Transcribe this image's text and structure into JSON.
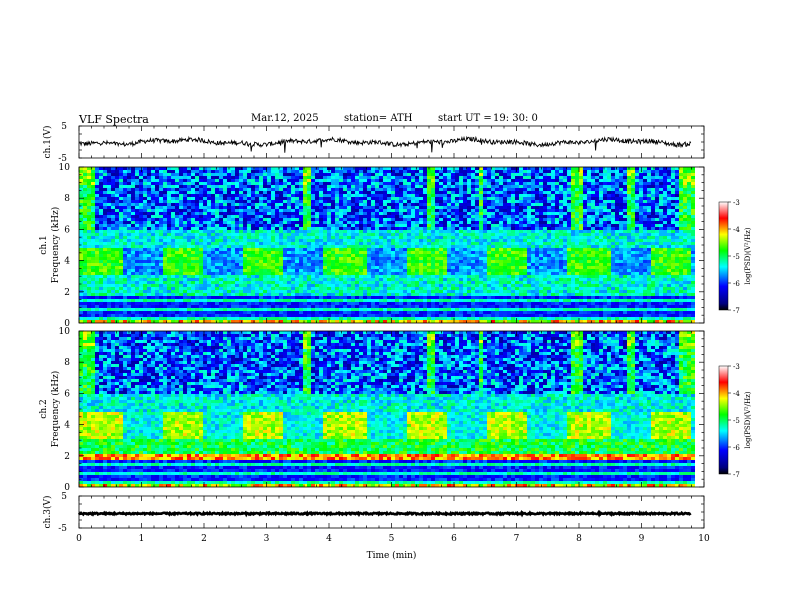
{
  "header": {
    "title": "VLF  Spectra",
    "date": "Mar.12, 2025",
    "station": "station= ATH",
    "start_ut_label": "start  UT  =",
    "start_ut": "19: 30: 0"
  },
  "colors": {
    "background": "#ffffff",
    "axis": "#000000",
    "spectro_low": "#00007f",
    "spectro_mid": "#00ffff",
    "spectro_high": "#ff0000"
  },
  "chart_data": [
    {
      "type": "line",
      "name": "ch1-waveform",
      "ylabel": "ch.1(V)",
      "ylim": [
        -5,
        5
      ],
      "yticks": [
        "5",
        "-5"
      ],
      "x_range_min": [
        0,
        9.8
      ],
      "approx_level": 0.0
    },
    {
      "type": "heatmap",
      "name": "ch1-spectrogram",
      "ylabel": "ch.1\nFrequency  (kHz)",
      "ylim": [
        0,
        10
      ],
      "yticks": [
        "0",
        "2",
        "4",
        "6",
        "8",
        "10"
      ],
      "x_range_min": [
        0,
        9.8
      ],
      "colorbar": {
        "label": "log(PSD)(V²/Hz)",
        "ticks": [
          "-3",
          "-4",
          "-5",
          "-6",
          "-7"
        ],
        "range": [
          -7,
          -3
        ]
      }
    },
    {
      "type": "heatmap",
      "name": "ch2-spectrogram",
      "ylabel": "ch.2\nFrequency  (kHz)",
      "ylim": [
        0,
        10
      ],
      "yticks": [
        "0",
        "2",
        "4",
        "6",
        "8",
        "10"
      ],
      "x_range_min": [
        0,
        9.8
      ],
      "colorbar": {
        "label": "log(PSD)(V²/Hz)",
        "ticks": [
          "-3",
          "-4",
          "-5",
          "-6",
          "-7"
        ],
        "range": [
          -7,
          -3
        ]
      }
    },
    {
      "type": "line",
      "name": "ch3-waveform",
      "ylabel": "ch.3(V)",
      "ylim": [
        -5,
        5
      ],
      "yticks": [
        "5",
        "-5"
      ],
      "x_range_min": [
        0,
        9.8
      ],
      "approx_level": -0.5
    }
  ],
  "xaxis": {
    "label": "Time  (min)",
    "ticks": [
      "0",
      "1",
      "2",
      "3",
      "4",
      "5",
      "6",
      "7",
      "8",
      "9",
      "10"
    ],
    "range": [
      0,
      10
    ]
  }
}
